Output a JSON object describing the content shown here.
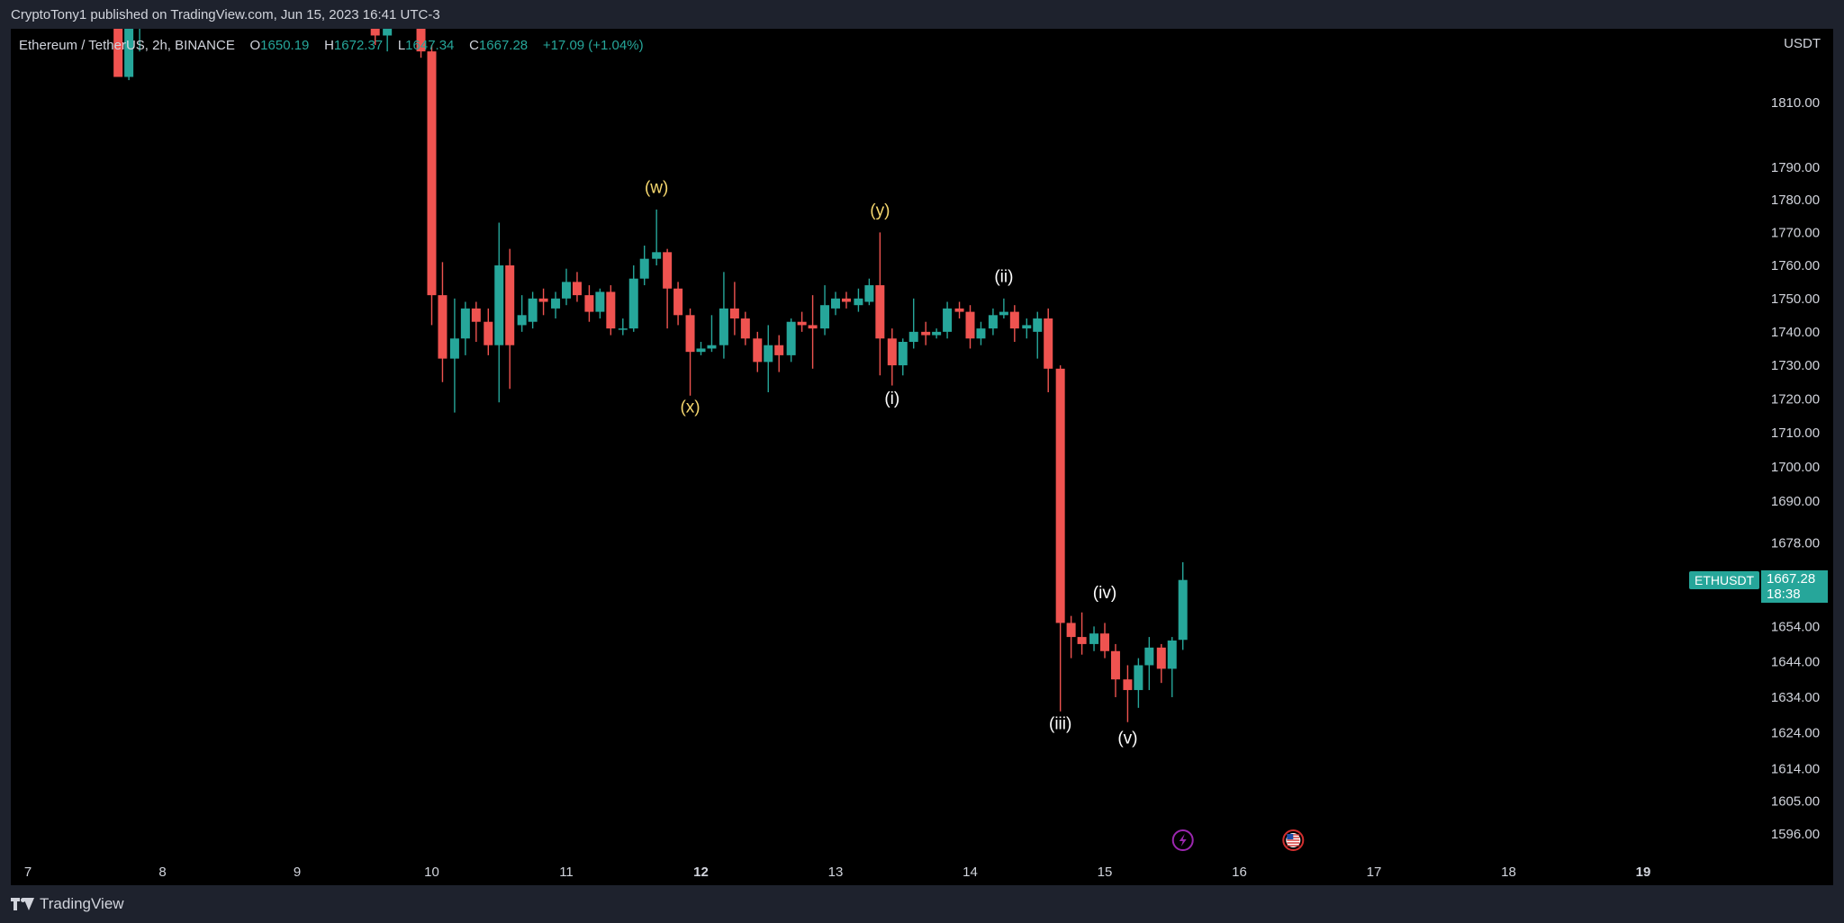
{
  "header": {
    "published": "CryptoTony1 published on TradingView.com, Jun 15, 2023 16:41 UTC-3"
  },
  "legend": {
    "symbol": "Ethereum / TetherUS, 2h, BINANCE",
    "o_label": "O",
    "o_value": "1650.19",
    "h_label": "H",
    "h_value": "1672.37",
    "l_label": "L",
    "l_value": "1647.34",
    "c_label": "C",
    "c_value": "1667.28",
    "change": "+17.09 (+1.04%)"
  },
  "axis": {
    "currency": "USDT"
  },
  "last_price": {
    "symbol": "ETHUSDT",
    "price": "1667.28",
    "countdown": "18:38"
  },
  "footer": {
    "brand": "TradingView"
  },
  "colors": {
    "up": "#26a69a",
    "down": "#ef5350",
    "background": "#000000",
    "frame": "#1e222d",
    "wave_corrective": "#f5d76e",
    "wave_impulse": "#ffffff",
    "axis_text": "#d1d4dc"
  },
  "chart_data": {
    "type": "candlestick",
    "symbol": "ETHUSDT",
    "timeframe": "2h",
    "ylim": [
      1586,
      1830
    ],
    "y_scale": "log",
    "xlim": [
      7,
      19.8
    ],
    "y_ticks": [
      1810,
      1790,
      1780,
      1770,
      1760,
      1750,
      1740,
      1730,
      1720,
      1710,
      1700,
      1690,
      1678,
      1654,
      1644,
      1634,
      1624,
      1614,
      1605,
      1596
    ],
    "x_ticks": [
      {
        "x": 7,
        "label": "7",
        "bold": false
      },
      {
        "x": 8,
        "label": "8",
        "bold": false
      },
      {
        "x": 9,
        "label": "9",
        "bold": false
      },
      {
        "x": 10,
        "label": "10",
        "bold": false
      },
      {
        "x": 11,
        "label": "11",
        "bold": false
      },
      {
        "x": 12,
        "label": "12",
        "bold": true
      },
      {
        "x": 13,
        "label": "13",
        "bold": false
      },
      {
        "x": 14,
        "label": "14",
        "bold": false
      },
      {
        "x": 15,
        "label": "15",
        "bold": false
      },
      {
        "x": 16,
        "label": "16",
        "bold": false
      },
      {
        "x": 17,
        "label": "17",
        "bold": false
      },
      {
        "x": 18,
        "label": "18",
        "bold": false
      },
      {
        "x": 19,
        "label": "19",
        "bold": true
      }
    ],
    "candles": [
      {
        "x": 7.67,
        "o": 1840,
        "h": 1845,
        "l": 1818,
        "c": 1818
      },
      {
        "x": 7.75,
        "o": 1818,
        "h": 1840,
        "l": 1817,
        "c": 1836
      },
      {
        "x": 7.83,
        "o": 1836,
        "h": 1842,
        "l": 1826,
        "c": 1840
      },
      {
        "x": 9.58,
        "o": 1838,
        "h": 1842,
        "l": 1828,
        "c": 1831
      },
      {
        "x": 9.67,
        "o": 1831,
        "h": 1840,
        "l": 1826,
        "c": 1838
      },
      {
        "x": 9.92,
        "o": 1838,
        "h": 1840,
        "l": 1824,
        "c": 1826
      },
      {
        "x": 10.0,
        "o": 1826,
        "h": 1828,
        "l": 1742,
        "c": 1751
      },
      {
        "x": 10.08,
        "o": 1751,
        "h": 1761,
        "l": 1725,
        "c": 1732
      },
      {
        "x": 10.17,
        "o": 1732,
        "h": 1750,
        "l": 1716,
        "c": 1738
      },
      {
        "x": 10.25,
        "o": 1738,
        "h": 1749,
        "l": 1733,
        "c": 1747
      },
      {
        "x": 10.33,
        "o": 1747,
        "h": 1749,
        "l": 1737,
        "c": 1743
      },
      {
        "x": 10.42,
        "o": 1743,
        "h": 1747,
        "l": 1733,
        "c": 1736
      },
      {
        "x": 10.5,
        "o": 1736,
        "h": 1773,
        "l": 1719,
        "c": 1760
      },
      {
        "x": 10.58,
        "o": 1760,
        "h": 1765,
        "l": 1723,
        "c": 1736
      },
      {
        "x": 10.67,
        "o": 1742,
        "h": 1751,
        "l": 1740,
        "c": 1745
      },
      {
        "x": 10.75,
        "o": 1743,
        "h": 1752,
        "l": 1741,
        "c": 1750
      },
      {
        "x": 10.83,
        "o": 1750,
        "h": 1753,
        "l": 1745,
        "c": 1749
      },
      {
        "x": 10.92,
        "o": 1747,
        "h": 1752,
        "l": 1744,
        "c": 1750
      },
      {
        "x": 11.0,
        "o": 1750,
        "h": 1759,
        "l": 1748,
        "c": 1755
      },
      {
        "x": 11.08,
        "o": 1755,
        "h": 1758,
        "l": 1749,
        "c": 1751
      },
      {
        "x": 11.17,
        "o": 1751,
        "h": 1754,
        "l": 1743,
        "c": 1746
      },
      {
        "x": 11.25,
        "o": 1746,
        "h": 1753,
        "l": 1744,
        "c": 1752
      },
      {
        "x": 11.33,
        "o": 1752,
        "h": 1754,
        "l": 1739,
        "c": 1741
      },
      {
        "x": 11.42,
        "o": 1741,
        "h": 1744,
        "l": 1739,
        "c": 1741
      },
      {
        "x": 11.5,
        "o": 1741,
        "h": 1760,
        "l": 1740,
        "c": 1756
      },
      {
        "x": 11.58,
        "o": 1756,
        "h": 1766,
        "l": 1754,
        "c": 1762
      },
      {
        "x": 11.67,
        "o": 1762,
        "h": 1777,
        "l": 1760,
        "c": 1764
      },
      {
        "x": 11.75,
        "o": 1764,
        "h": 1765,
        "l": 1741,
        "c": 1753
      },
      {
        "x": 11.83,
        "o": 1753,
        "h": 1755,
        "l": 1742,
        "c": 1745
      },
      {
        "x": 11.92,
        "o": 1745,
        "h": 1747,
        "l": 1721,
        "c": 1734
      },
      {
        "x": 12.0,
        "o": 1734,
        "h": 1737,
        "l": 1733,
        "c": 1735
      },
      {
        "x": 12.08,
        "o": 1735,
        "h": 1745,
        "l": 1734,
        "c": 1736
      },
      {
        "x": 12.17,
        "o": 1736,
        "h": 1758,
        "l": 1732,
        "c": 1747
      },
      {
        "x": 12.25,
        "o": 1747,
        "h": 1755,
        "l": 1739,
        "c": 1744
      },
      {
        "x": 12.33,
        "o": 1744,
        "h": 1746,
        "l": 1736,
        "c": 1738
      },
      {
        "x": 12.42,
        "o": 1738,
        "h": 1740,
        "l": 1728,
        "c": 1731
      },
      {
        "x": 12.5,
        "o": 1731,
        "h": 1742,
        "l": 1722,
        "c": 1736
      },
      {
        "x": 12.58,
        "o": 1736,
        "h": 1739,
        "l": 1728,
        "c": 1733
      },
      {
        "x": 12.67,
        "o": 1733,
        "h": 1744,
        "l": 1731,
        "c": 1743
      },
      {
        "x": 12.75,
        "o": 1743,
        "h": 1746,
        "l": 1740,
        "c": 1742
      },
      {
        "x": 12.83,
        "o": 1742,
        "h": 1751,
        "l": 1729,
        "c": 1741
      },
      {
        "x": 12.92,
        "o": 1741,
        "h": 1754,
        "l": 1739,
        "c": 1748
      },
      {
        "x": 13.0,
        "o": 1747,
        "h": 1752,
        "l": 1745,
        "c": 1750
      },
      {
        "x": 13.08,
        "o": 1750,
        "h": 1752,
        "l": 1747,
        "c": 1749
      },
      {
        "x": 13.17,
        "o": 1748,
        "h": 1753,
        "l": 1746,
        "c": 1750
      },
      {
        "x": 13.25,
        "o": 1749,
        "h": 1756,
        "l": 1748,
        "c": 1754
      },
      {
        "x": 13.33,
        "o": 1754,
        "h": 1770,
        "l": 1727,
        "c": 1738
      },
      {
        "x": 13.42,
        "o": 1738,
        "h": 1741,
        "l": 1724,
        "c": 1730
      },
      {
        "x": 13.5,
        "o": 1730,
        "h": 1738,
        "l": 1727,
        "c": 1737
      },
      {
        "x": 13.58,
        "o": 1737,
        "h": 1750,
        "l": 1735,
        "c": 1740
      },
      {
        "x": 13.67,
        "o": 1740,
        "h": 1743,
        "l": 1736,
        "c": 1739
      },
      {
        "x": 13.75,
        "o": 1739,
        "h": 1741,
        "l": 1738,
        "c": 1740
      },
      {
        "x": 13.83,
        "o": 1740,
        "h": 1749,
        "l": 1738,
        "c": 1747
      },
      {
        "x": 13.92,
        "o": 1747,
        "h": 1749,
        "l": 1744,
        "c": 1746
      },
      {
        "x": 14.0,
        "o": 1746,
        "h": 1748,
        "l": 1735,
        "c": 1738
      },
      {
        "x": 14.08,
        "o": 1738,
        "h": 1743,
        "l": 1736,
        "c": 1741
      },
      {
        "x": 14.17,
        "o": 1741,
        "h": 1747,
        "l": 1739,
        "c": 1745
      },
      {
        "x": 14.25,
        "o": 1745,
        "h": 1750,
        "l": 1744,
        "c": 1746
      },
      {
        "x": 14.33,
        "o": 1746,
        "h": 1748,
        "l": 1737,
        "c": 1741
      },
      {
        "x": 14.42,
        "o": 1741,
        "h": 1744,
        "l": 1738,
        "c": 1742
      },
      {
        "x": 14.5,
        "o": 1740,
        "h": 1746,
        "l": 1732,
        "c": 1744
      },
      {
        "x": 14.58,
        "o": 1744,
        "h": 1747,
        "l": 1722,
        "c": 1729
      },
      {
        "x": 14.67,
        "o": 1729,
        "h": 1730,
        "l": 1630,
        "c": 1655
      },
      {
        "x": 14.75,
        "o": 1655,
        "h": 1657,
        "l": 1645,
        "c": 1651
      },
      {
        "x": 14.83,
        "o": 1651,
        "h": 1658,
        "l": 1646,
        "c": 1649
      },
      {
        "x": 14.92,
        "o": 1649,
        "h": 1654,
        "l": 1647,
        "c": 1652
      },
      {
        "x": 15.0,
        "o": 1652,
        "h": 1655,
        "l": 1645,
        "c": 1647
      },
      {
        "x": 15.08,
        "o": 1647,
        "h": 1649,
        "l": 1634,
        "c": 1639
      },
      {
        "x": 15.17,
        "o": 1639,
        "h": 1643,
        "l": 1627,
        "c": 1636
      },
      {
        "x": 15.25,
        "o": 1636,
        "h": 1645,
        "l": 1631,
        "c": 1643
      },
      {
        "x": 15.33,
        "o": 1643,
        "h": 1651,
        "l": 1636,
        "c": 1648
      },
      {
        "x": 15.42,
        "o": 1648,
        "h": 1649,
        "l": 1638,
        "c": 1642
      },
      {
        "x": 15.5,
        "o": 1642,
        "h": 1651,
        "l": 1634,
        "c": 1650
      },
      {
        "x": 15.58,
        "o": 1650.19,
        "h": 1672.37,
        "l": 1647.34,
        "c": 1667.28
      }
    ],
    "annotations": [
      {
        "label": "(w)",
        "x": 11.67,
        "y": 1782,
        "color": "#f5d76e"
      },
      {
        "label": "(x)",
        "x": 11.92,
        "y": 1716,
        "color": "#f5d76e"
      },
      {
        "label": "(y)",
        "x": 13.33,
        "y": 1775,
        "color": "#f5d76e"
      },
      {
        "label": "(i)",
        "x": 13.42,
        "y": 1718.5,
        "color": "#ffffff"
      },
      {
        "label": "(ii)",
        "x": 14.25,
        "y": 1755,
        "color": "#ffffff"
      },
      {
        "label": "(iii)",
        "x": 14.67,
        "y": 1625,
        "color": "#ffffff"
      },
      {
        "label": "(iv)",
        "x": 15.0,
        "y": 1662,
        "color": "#ffffff"
      },
      {
        "label": "(v)",
        "x": 15.17,
        "y": 1621,
        "color": "#ffffff"
      }
    ],
    "events": [
      {
        "x": 15.58,
        "icon": "lightning-icon",
        "color": "#9c27b0"
      },
      {
        "x": 16.4,
        "icon": "us-flag-icon",
        "color": "#d32f2f"
      }
    ]
  }
}
